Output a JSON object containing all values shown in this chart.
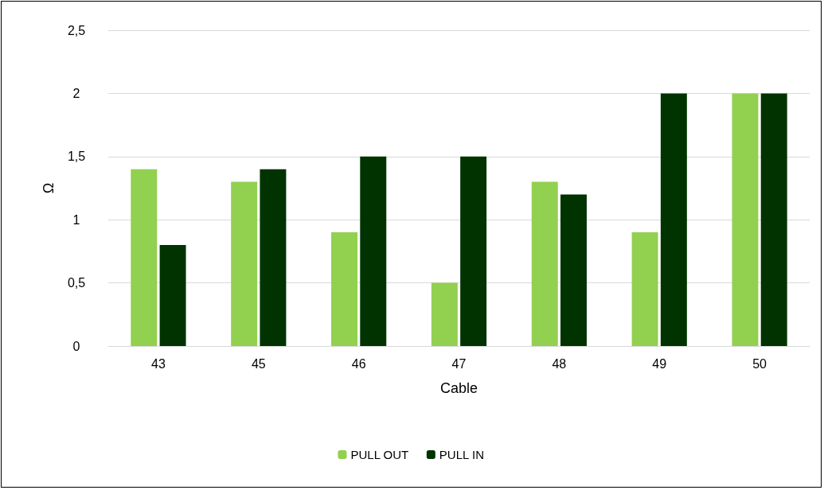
{
  "chart_data": {
    "type": "bar",
    "xlabel": "Cable",
    "ylabel": "Ω",
    "categories": [
      "43",
      "45",
      "46",
      "47",
      "48",
      "49",
      "50"
    ],
    "series": [
      {
        "name": "PULL OUT",
        "color": "#92d050",
        "values": [
          1.4,
          1.3,
          0.9,
          0.5,
          1.3,
          0.9,
          2.0
        ]
      },
      {
        "name": "PULL IN",
        "color": "#003300",
        "values": [
          0.8,
          1.4,
          1.5,
          1.5,
          1.2,
          2.0,
          2.0
        ]
      }
    ],
    "ylim": [
      0,
      2.5
    ],
    "yticks": [
      0,
      {
        "value": 0.5,
        "label": "0,5"
      },
      1,
      {
        "value": 1.5,
        "label": "1,5"
      },
      2,
      {
        "value": 2.5,
        "label": "2,5"
      }
    ],
    "grid": "y",
    "legend": "bottom"
  }
}
